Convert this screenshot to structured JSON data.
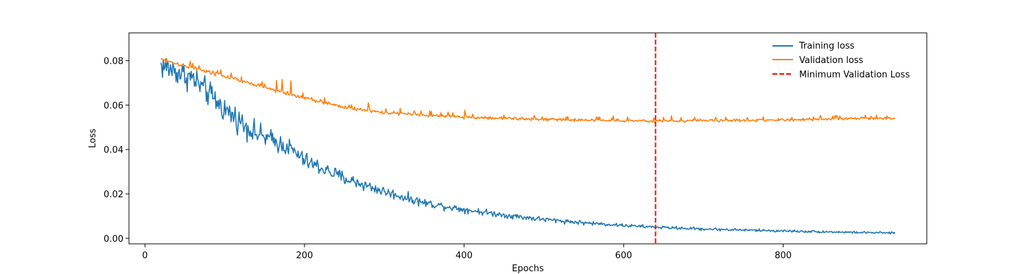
{
  "chart_data": {
    "type": "line",
    "title": "",
    "xlabel": "Epochs",
    "ylabel": "Loss",
    "xlim": [
      -20,
      980
    ],
    "ylim": [
      -0.0025,
      0.0925
    ],
    "xticks": [
      0,
      200,
      400,
      600,
      800
    ],
    "xtick_labels": [
      "0",
      "200",
      "400",
      "600",
      "800"
    ],
    "yticks": [
      0.0,
      0.02,
      0.04,
      0.06,
      0.08
    ],
    "ytick_labels": [
      "0.00",
      "0.02",
      "0.04",
      "0.06",
      "0.08"
    ],
    "grid": false,
    "legend_position": "top-right",
    "x_range": [
      20,
      940
    ],
    "series": [
      {
        "name": "Training loss",
        "color": "#1f77b4",
        "style": "solid",
        "anchors": [
          [
            20,
            0.078
          ],
          [
            60,
            0.072
          ],
          [
            100,
            0.058
          ],
          [
            140,
            0.047
          ],
          [
            180,
            0.041
          ],
          [
            200,
            0.035
          ],
          [
            250,
            0.027
          ],
          [
            300,
            0.021
          ],
          [
            350,
            0.016
          ],
          [
            400,
            0.013
          ],
          [
            450,
            0.0105
          ],
          [
            500,
            0.0085
          ],
          [
            550,
            0.007
          ],
          [
            600,
            0.0058
          ],
          [
            640,
            0.005
          ],
          [
            700,
            0.0042
          ],
          [
            800,
            0.0033
          ],
          [
            900,
            0.0026
          ],
          [
            940,
            0.0024
          ]
        ],
        "noise_amplitude": [
          [
            20,
            0.006
          ],
          [
            120,
            0.005
          ],
          [
            200,
            0.0035
          ],
          [
            300,
            0.0022
          ],
          [
            400,
            0.0014
          ],
          [
            600,
            0.0007
          ],
          [
            940,
            0.0004
          ]
        ]
      },
      {
        "name": "Validation loss",
        "color": "#ff7f0e",
        "style": "solid",
        "anchors": [
          [
            20,
            0.0805
          ],
          [
            100,
            0.073
          ],
          [
            180,
            0.065
          ],
          [
            250,
            0.059
          ],
          [
            300,
            0.0565
          ],
          [
            400,
            0.0545
          ],
          [
            500,
            0.0535
          ],
          [
            600,
            0.053
          ],
          [
            640,
            0.0528
          ],
          [
            700,
            0.053
          ],
          [
            800,
            0.0533
          ],
          [
            900,
            0.054
          ],
          [
            940,
            0.054
          ]
        ],
        "noise_amplitude": [
          [
            20,
            0.0008
          ],
          [
            200,
            0.0008
          ],
          [
            400,
            0.0006
          ],
          [
            940,
            0.0005
          ]
        ],
        "spikes": [
          [
            90,
            0.0745
          ],
          [
            110,
            0.0725
          ],
          [
            150,
            0.0695
          ],
          [
            165,
            0.071
          ],
          [
            172,
            0.0715
          ],
          [
            183,
            0.071
          ],
          [
            280,
            0.061
          ],
          [
            320,
            0.0585
          ],
          [
            401,
            0.0577
          ],
          [
            450,
            0.0555
          ],
          [
            660,
            0.0552
          ]
        ]
      }
    ],
    "reference_lines": [
      {
        "name": "Minimum Validation Loss",
        "x": 640,
        "color": "#ff0000",
        "style": "dashed"
      }
    ]
  }
}
